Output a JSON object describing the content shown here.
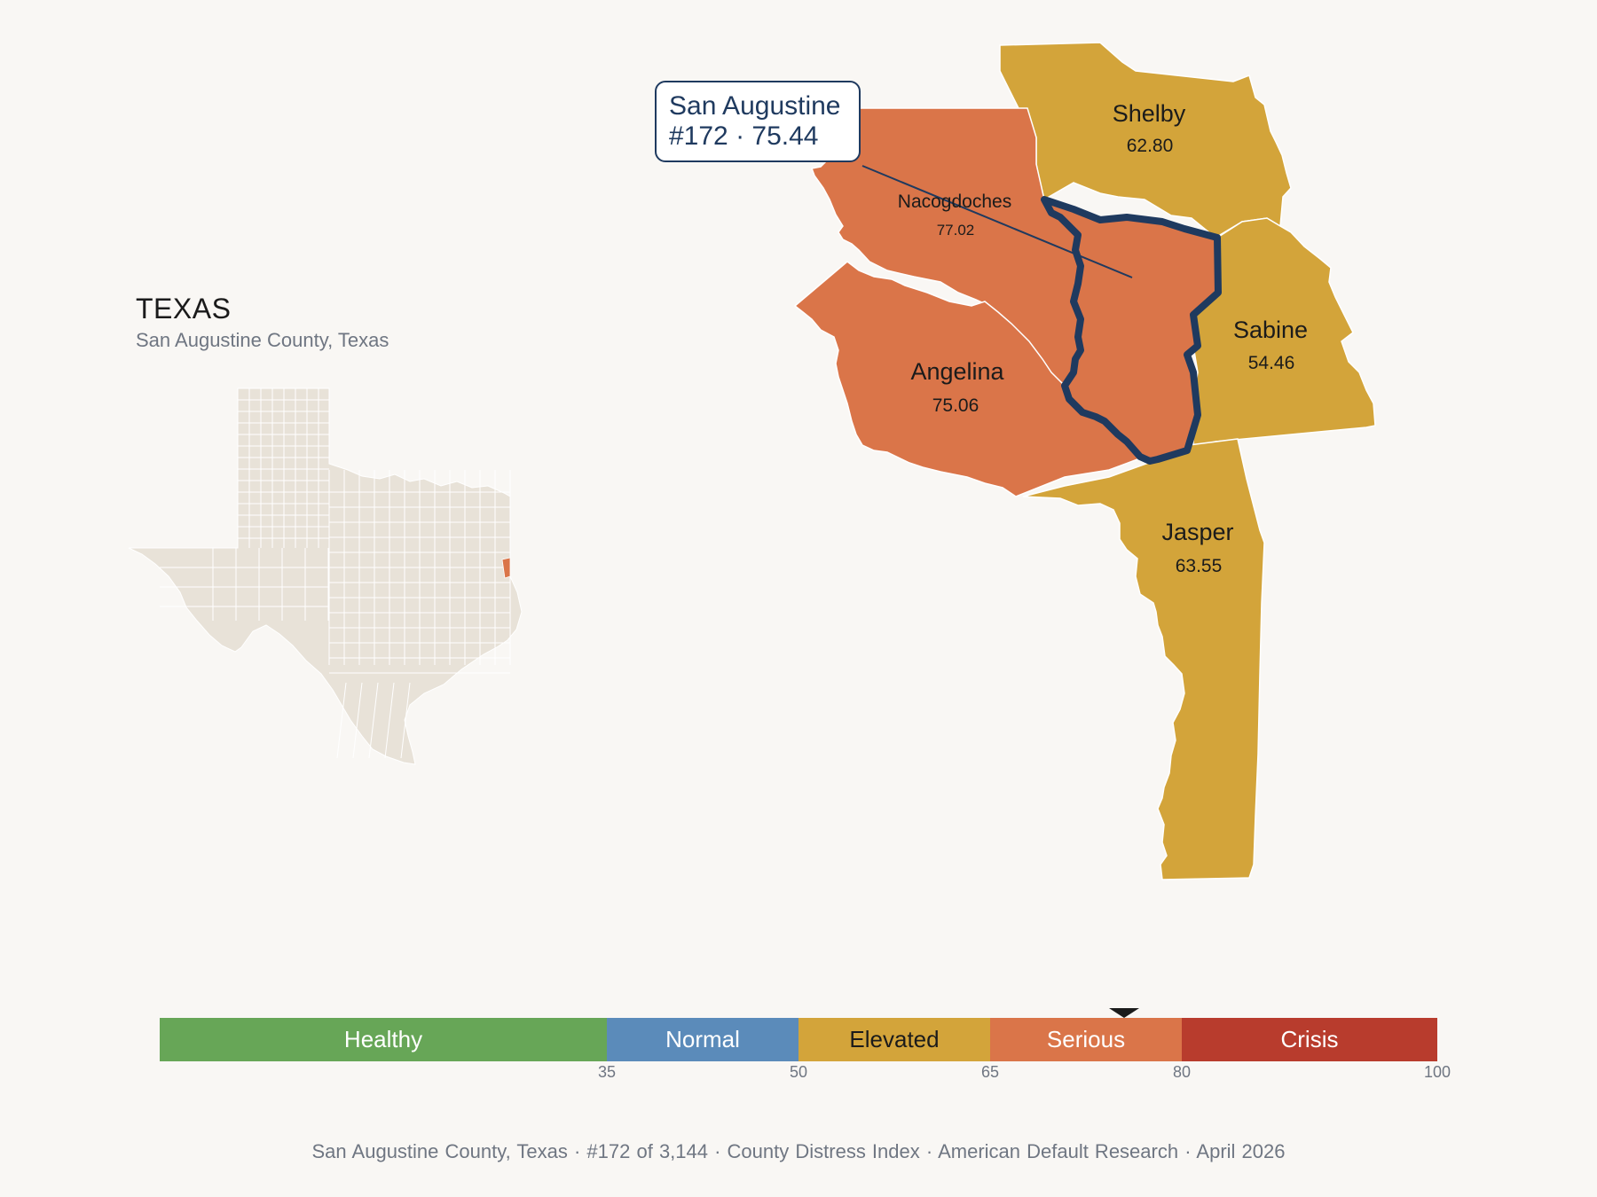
{
  "state": {
    "title": "TEXAS",
    "subtitle": "San Augustine County, Texas"
  },
  "callout": {
    "line1": "San Augustine",
    "line2": "#172 · 75.44"
  },
  "counties": [
    {
      "key": "shelby",
      "name": "Shelby",
      "score": "62.80",
      "category": "Elevated",
      "color": "#d3a43a"
    },
    {
      "key": "nacogdoches",
      "name": "Nacogdoches",
      "score": "77.02",
      "category": "Serious",
      "color": "#da7549"
    },
    {
      "key": "sabine",
      "name": "Sabine",
      "score": "54.46",
      "category": "Elevated",
      "color": "#d3a43a"
    },
    {
      "key": "angelina",
      "name": "Angelina",
      "score": "75.06",
      "category": "Serious",
      "color": "#da7549"
    },
    {
      "key": "jasper",
      "name": "Jasper",
      "score": "63.55",
      "category": "Elevated",
      "color": "#d3a43a"
    },
    {
      "key": "san-augustine",
      "name": "San Augustine",
      "score": "75.44",
      "rank": "#172",
      "category": "Serious",
      "color": "#da7549",
      "highlighted": true
    }
  ],
  "colors": {
    "background": "#f9f7f4",
    "state_fill": "#e8e2d8",
    "highlight_outline": "#1f3a5f",
    "healthy": "#67a657",
    "normal": "#5b8bba",
    "elevated": "#d3a43a",
    "serious": "#da7549",
    "crisis": "#b83c2d"
  },
  "scale": {
    "segments": [
      {
        "label": "Healthy",
        "from": 0,
        "to": 35,
        "color": "#67a657"
      },
      {
        "label": "Normal",
        "from": 35,
        "to": 50,
        "color": "#5b8bba"
      },
      {
        "label": "Elevated",
        "from": 50,
        "to": 65,
        "color": "#d3a43a"
      },
      {
        "label": "Serious",
        "from": 65,
        "to": 80,
        "color": "#da7549"
      },
      {
        "label": "Crisis",
        "from": 80,
        "to": 100,
        "color": "#b83c2d"
      }
    ],
    "ticks": [
      "35",
      "50",
      "65",
      "80",
      "100"
    ],
    "marker_value": 75.44
  },
  "footer": {
    "text": "San Augustine County, Texas  ·  #172 of 3,144  ·  County Distress Index  ·  American Default Research  ·  April 2026"
  }
}
